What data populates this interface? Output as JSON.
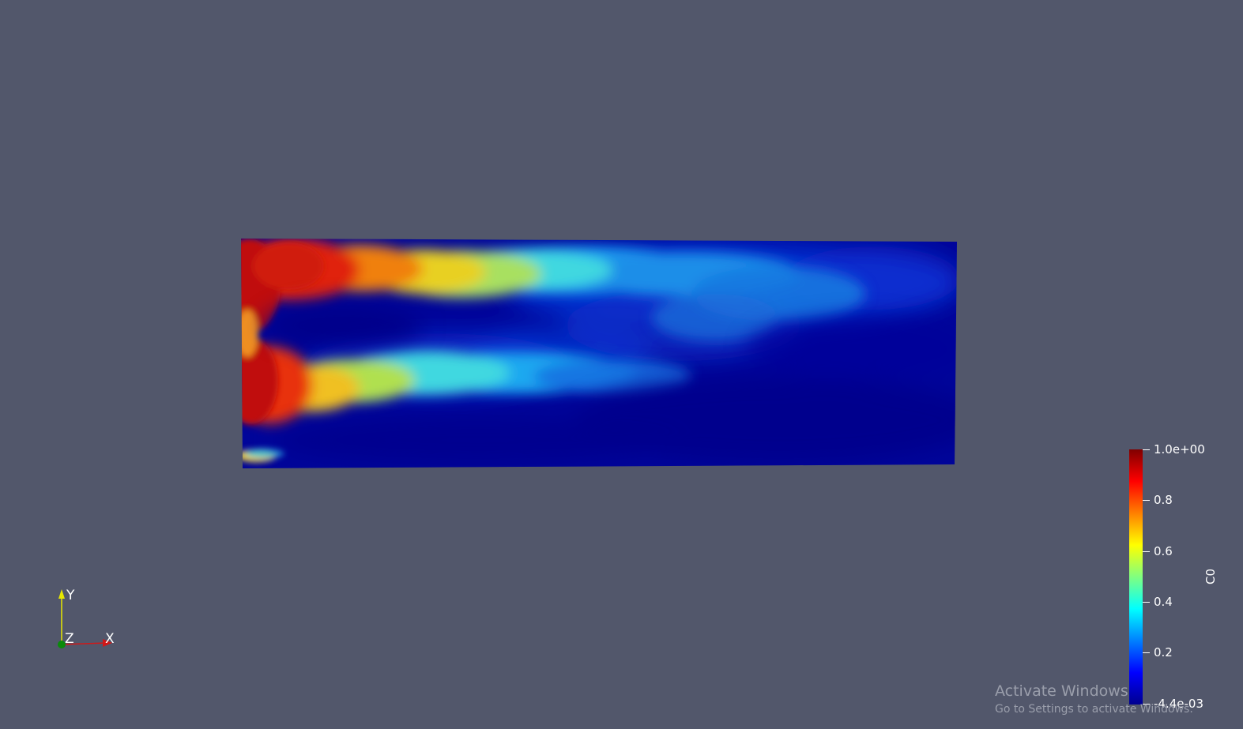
{
  "view": {
    "background_color": "#52576b"
  },
  "scalar_field": {
    "colormap": [
      "#00008f",
      "#0000ff",
      "#0080ff",
      "#00ffff",
      "#80ff80",
      "#ffff00",
      "#ff8000",
      "#ff0000",
      "#800000"
    ]
  },
  "legend": {
    "title": "C0",
    "ticks": [
      {
        "label": "1.0e+00",
        "value": 1.0
      },
      {
        "label": "0.8",
        "value": 0.8
      },
      {
        "label": "0.6",
        "value": 0.6
      },
      {
        "label": "0.4",
        "value": 0.4
      },
      {
        "label": "0.2",
        "value": 0.2
      },
      {
        "label": "-4.4e-03",
        "value": -0.0044
      }
    ],
    "range": [
      -0.0044,
      1.0
    ]
  },
  "axes": {
    "x_label": "X",
    "y_label": "Y",
    "z_label": "Z",
    "x_color": "#d01818",
    "y_color": "#e8e800",
    "z_color": "#0a8a0a"
  },
  "watermark": {
    "title": "Activate Windows",
    "subtitle": "Go to Settings to activate Windows."
  }
}
